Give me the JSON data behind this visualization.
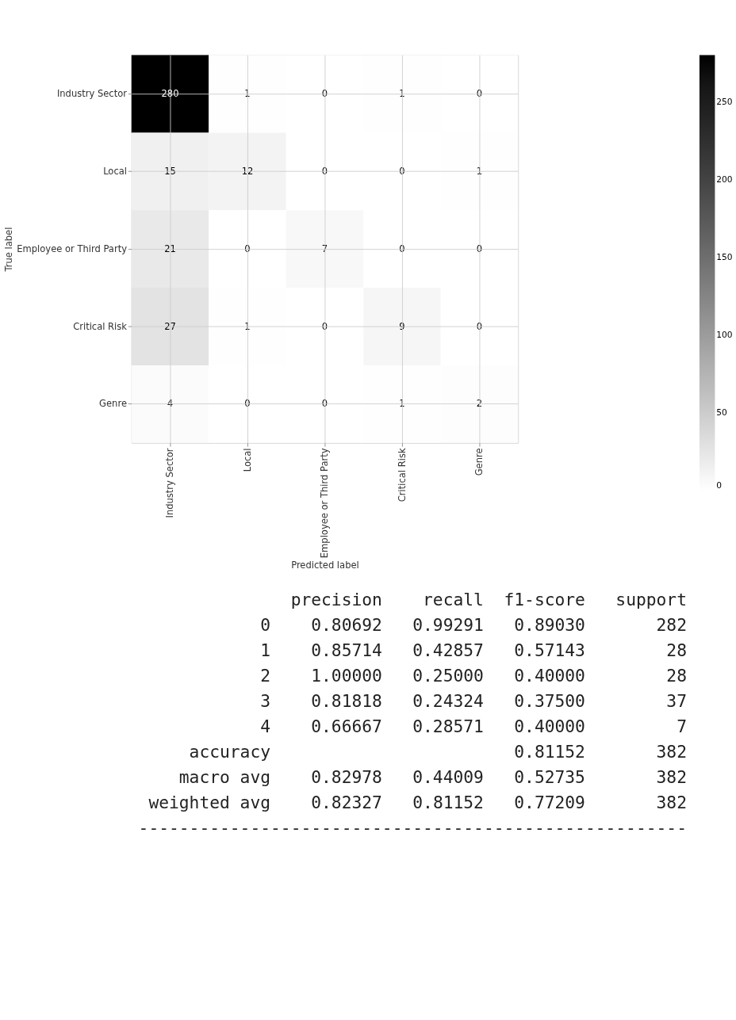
{
  "chart_data": [
    {
      "type": "heatmap",
      "xlabel": "Predicted label",
      "ylabel": "True label",
      "categories": [
        "Industry Sector",
        "Local",
        "Employee or Third Party",
        "Critical Risk",
        "Genre"
      ],
      "y_categories": [
        "Industry Sector",
        "Local",
        "Employee or Third Party",
        "Critical Risk",
        "Genre"
      ],
      "cells": [
        [
          280,
          1,
          0,
          1,
          0
        ],
        [
          15,
          12,
          0,
          0,
          1
        ],
        [
          21,
          0,
          7,
          0,
          0
        ],
        [
          27,
          1,
          0,
          9,
          0
        ],
        [
          4,
          0,
          0,
          1,
          2
        ]
      ],
      "clim": [
        0,
        280
      ],
      "cticks": [
        0,
        50,
        100,
        150,
        200,
        250
      ],
      "grid": true,
      "data_labels": true
    },
    {
      "type": "other",
      "annotations": [
        "              precision    recall  f1-score   support",
        "           0    0.80692   0.99291   0.89030       282",
        "           1    0.85714   0.42857   0.57143        28",
        "           2    1.00000   0.25000   0.40000        28",
        "           3    0.81818   0.24324   0.37500        37",
        "           4    0.66667   0.28571   0.40000         7",
        "    accuracy                        0.81152       382",
        "   macro avg    0.82978   0.44009   0.52735       382",
        "weighted avg    0.82327   0.81152   0.77209       382",
        "------------------------------------------------------"
      ]
    }
  ]
}
